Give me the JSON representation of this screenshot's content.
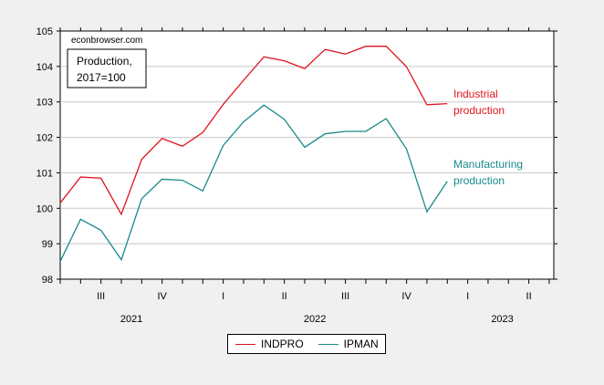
{
  "chart_data": {
    "type": "line",
    "watermark": "econbrowser.com",
    "annotation_box": [
      "Production,",
      "2017=100"
    ],
    "ylim": [
      98,
      105
    ],
    "y_ticks": [
      "98",
      "99",
      "100",
      "101",
      "102",
      "103",
      "104",
      "105"
    ],
    "quarter_ticks": [
      "III",
      "IV",
      "I",
      "II",
      "III",
      "IV",
      "I",
      "II"
    ],
    "year_labels": [
      "2021",
      "2022",
      "2023"
    ],
    "x": [
      "2021-06",
      "2021-07",
      "2021-08",
      "2021-09",
      "2021-10",
      "2021-11",
      "2021-12",
      "2022-01",
      "2022-02",
      "2022-03",
      "2022-04",
      "2022-05",
      "2022-06",
      "2022-07",
      "2022-08",
      "2022-09",
      "2022-10",
      "2022-11",
      "2022-12",
      "2023-01"
    ],
    "series": [
      {
        "name": "INDPRO",
        "color": "#e0141e",
        "label_lines": [
          "Industrial",
          "production"
        ],
        "values": [
          100.15,
          100.88,
          100.85,
          99.83,
          101.38,
          101.97,
          101.75,
          102.14,
          102.93,
          103.61,
          104.27,
          104.16,
          103.94,
          104.48,
          104.35,
          104.57,
          104.57,
          103.99,
          102.92,
          102.95
        ]
      },
      {
        "name": "IPMAN",
        "color": "#1a8a8a",
        "label_lines": [
          "Manufacturing",
          "production"
        ],
        "values": [
          98.5,
          99.69,
          99.38,
          98.55,
          100.27,
          100.82,
          100.79,
          100.49,
          101.77,
          102.44,
          102.91,
          102.51,
          101.72,
          102.1,
          102.17,
          102.17,
          102.53,
          101.67,
          99.9,
          100.76
        ]
      }
    ],
    "grid": true,
    "legend_position": "bottom-center"
  }
}
